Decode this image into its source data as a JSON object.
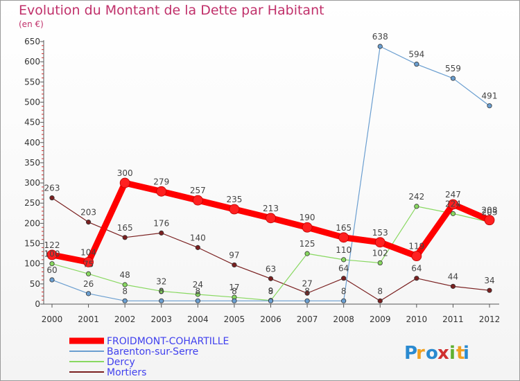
{
  "header": {
    "title": "Evolution du Montant de la Dette par Habitant",
    "subtitle": "(en €)"
  },
  "logo": {
    "letters": [
      "P",
      "r",
      "o",
      "x",
      "i",
      "t",
      "i"
    ],
    "colors": [
      "#2a8ad0",
      "#f0a020",
      "#2a8ad0",
      "#d03030",
      "#60b030",
      "#f0a020",
      "#2a8ad0"
    ]
  },
  "chart_data": {
    "type": "line",
    "categories": [
      "2000",
      "2001",
      "2002",
      "2003",
      "2004",
      "2005",
      "2006",
      "2007",
      "2008",
      "2009",
      "2010",
      "2011",
      "2012"
    ],
    "ylim": [
      0,
      650
    ],
    "yticks": [
      0,
      50,
      100,
      150,
      200,
      250,
      300,
      350,
      400,
      450,
      500,
      550,
      600,
      650
    ],
    "grid": false,
    "legend_position": "bottom-left",
    "series": [
      {
        "name": "Mortiers",
        "color": "#7a2020",
        "width": 1.2,
        "values": [
          263,
          203,
          165,
          176,
          140,
          97,
          63,
          27,
          64,
          8,
          64,
          44,
          34
        ],
        "labels": [
          "263",
          "203",
          "165",
          "176",
          "140",
          "97",
          "63",
          "27",
          "64",
          "8",
          "64",
          "44",
          "34"
        ]
      },
      {
        "name": "Dercy",
        "color": "#88d860",
        "width": 1.2,
        "values": [
          100,
          75,
          48,
          32,
          24,
          17,
          9,
          125,
          110,
          102,
          242,
          224,
          203
        ],
        "labels": [
          "100",
          "75",
          "48",
          "32",
          "24",
          "17",
          "9",
          "125",
          "110",
          "102",
          "242",
          "224",
          "203"
        ]
      },
      {
        "name": "Barenton-sur-Serre",
        "color": "#6a9ed0",
        "width": 1.2,
        "values": [
          60,
          26,
          8,
          8,
          8,
          8,
          8,
          8,
          8,
          638,
          594,
          559,
          491
        ],
        "labels": [
          "60",
          "26",
          "8",
          "8",
          "8",
          "8",
          "8",
          "8",
          "8",
          "638",
          "594",
          "559",
          "491"
        ]
      },
      {
        "name": "FROIDMONT-COHARTILLE",
        "color": "#ff0000",
        "width": 9,
        "values": [
          122,
          104,
          300,
          279,
          257,
          235,
          213,
          190,
          165,
          153,
          119,
          247,
          208
        ],
        "labels": [
          "122",
          "104",
          "300",
          "279",
          "257",
          "235",
          "213",
          "190",
          "165",
          "153",
          "119",
          "247",
          "208"
        ]
      }
    ]
  }
}
